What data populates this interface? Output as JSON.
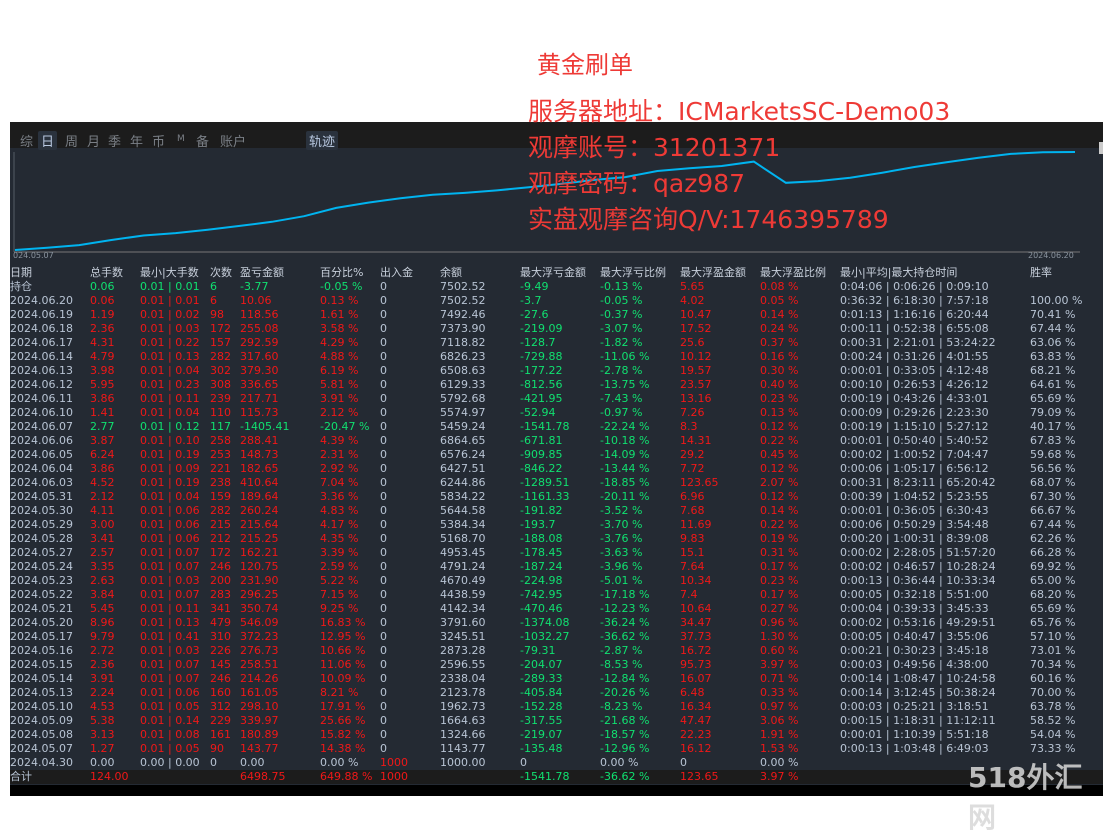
{
  "tabs": [
    "综",
    "日",
    "周",
    "月",
    "季",
    "年",
    "币",
    "M",
    "备",
    "账户"
  ],
  "active_tab": "日",
  "track_button": "轨迹",
  "chart": {
    "start_date": "024.05.07",
    "end_date": "2024.06.20",
    "line_color": "#00b4f0"
  },
  "overlay": {
    "title": "黄金刷单",
    "server": "服务器地址：ICMarketsSC-Demo03",
    "account": "观摩账号：31201371",
    "password": "观摩密码：qaz987",
    "contact": "实盘观摩咨询Q/V:1746395789"
  },
  "watermark": "518外汇网",
  "table": {
    "headers": [
      "日期",
      "总手数",
      "最小|大手数",
      "次数",
      "盈亏金额",
      "百分比%",
      "出入金",
      "余额",
      "最大浮亏金额",
      "最大浮亏比例",
      "最大浮盈金额",
      "最大浮盈比例",
      "最小|平均|最大持仓时间",
      "胜率"
    ],
    "holding": [
      "持仓",
      "0.06",
      "0.01 | 0.01",
      "6",
      "-3.77",
      "-0.05 %",
      "0",
      "7502.52",
      "-9.49",
      "-0.13 %",
      "5.65",
      "0.08 %",
      "0:04:06 | 0:06:26 | 0:09:10",
      ""
    ],
    "rows": [
      [
        "2024.06.20",
        "0.06",
        "0.01 | 0.01",
        "6",
        "10.06",
        "0.13 %",
        "0",
        "7502.52",
        "-3.7",
        "-0.05 %",
        "4.02",
        "0.05 %",
        "0:36:32 | 6:18:30 | 7:57:18",
        "100.00 %"
      ],
      [
        "2024.06.19",
        "1.19",
        "0.01 | 0.02",
        "98",
        "118.56",
        "1.61 %",
        "0",
        "7492.46",
        "-27.6",
        "-0.37 %",
        "10.47",
        "0.14 %",
        "0:01:13 | 1:16:16 | 6:20:44",
        "70.41 %"
      ],
      [
        "2024.06.18",
        "2.36",
        "0.01 | 0.03",
        "172",
        "255.08",
        "3.58 %",
        "0",
        "7373.90",
        "-219.09",
        "-3.07 %",
        "17.52",
        "0.24 %",
        "0:00:11 | 0:52:38 | 6:55:08",
        "67.44 %"
      ],
      [
        "2024.06.17",
        "4.31",
        "0.01 | 0.22",
        "157",
        "292.59",
        "4.29 %",
        "0",
        "7118.82",
        "-128.7",
        "-1.82 %",
        "25.6",
        "0.37 %",
        "0:00:31 | 2:21:01 | 53:24:22",
        "63.06 %"
      ],
      [
        "2024.06.14",
        "4.79",
        "0.01 | 0.13",
        "282",
        "317.60",
        "4.88 %",
        "0",
        "6826.23",
        "-729.88",
        "-11.06 %",
        "10.12",
        "0.16 %",
        "0:00:24 | 0:31:26 | 4:01:55",
        "63.83 %"
      ],
      [
        "2024.06.13",
        "3.98",
        "0.01 | 0.04",
        "302",
        "379.30",
        "6.19 %",
        "0",
        "6508.63",
        "-177.22",
        "-2.78 %",
        "19.57",
        "0.30 %",
        "0:00:01 | 0:33:05 | 4:12:48",
        "68.21 %"
      ],
      [
        "2024.06.12",
        "5.95",
        "0.01 | 0.23",
        "308",
        "336.65",
        "5.81 %",
        "0",
        "6129.33",
        "-812.56",
        "-13.75 %",
        "23.57",
        "0.40 %",
        "0:00:10 | 0:26:53 | 4:26:12",
        "64.61 %"
      ],
      [
        "2024.06.11",
        "3.86",
        "0.01 | 0.11",
        "239",
        "217.71",
        "3.91 %",
        "0",
        "5792.68",
        "-421.95",
        "-7.43 %",
        "13.16",
        "0.23 %",
        "0:00:19 | 0:43:26 | 4:33:01",
        "65.69 %"
      ],
      [
        "2024.06.10",
        "1.41",
        "0.01 | 0.04",
        "110",
        "115.73",
        "2.12 %",
        "0",
        "5574.97",
        "-52.94",
        "-0.97 %",
        "7.26",
        "0.13 %",
        "0:00:09 | 0:29:26 | 2:23:30",
        "79.09 %"
      ],
      [
        "2024.06.07",
        "2.77",
        "0.01 | 0.12",
        "117",
        "-1405.41",
        "-20.47 %",
        "0",
        "5459.24",
        "-1541.78",
        "-22.24 %",
        "8.3",
        "0.12 %",
        "0:00:19 | 1:15:10 | 5:27:12",
        "40.17 %"
      ],
      [
        "2024.06.06",
        "3.87",
        "0.01 | 0.10",
        "258",
        "288.41",
        "4.39 %",
        "0",
        "6864.65",
        "-671.81",
        "-10.18 %",
        "14.31",
        "0.22 %",
        "0:00:01 | 0:50:40 | 5:40:52",
        "67.83 %"
      ],
      [
        "2024.06.05",
        "6.24",
        "0.01 | 0.19",
        "253",
        "148.73",
        "2.31 %",
        "0",
        "6576.24",
        "-909.85",
        "-14.09 %",
        "29.2",
        "0.45 %",
        "0:00:02 | 1:00:52 | 7:04:47",
        "59.68 %"
      ],
      [
        "2024.06.04",
        "3.86",
        "0.01 | 0.09",
        "221",
        "182.65",
        "2.92 %",
        "0",
        "6427.51",
        "-846.22",
        "-13.44 %",
        "7.72",
        "0.12 %",
        "0:00:06 | 1:05:17 | 6:56:12",
        "56.56 %"
      ],
      [
        "2024.06.03",
        "4.52",
        "0.01 | 0.19",
        "238",
        "410.64",
        "7.04 %",
        "0",
        "6244.86",
        "-1289.51",
        "-18.85 %",
        "123.65",
        "2.07 %",
        "0:00:31 | 8:23:11 | 65:20:42",
        "68.07 %"
      ],
      [
        "2024.05.31",
        "2.12",
        "0.01 | 0.04",
        "159",
        "189.64",
        "3.36 %",
        "0",
        "5834.22",
        "-1161.33",
        "-20.11 %",
        "6.96",
        "0.12 %",
        "0:00:39 | 1:04:52 | 5:23:55",
        "67.30 %"
      ],
      [
        "2024.05.30",
        "4.11",
        "0.01 | 0.06",
        "282",
        "260.24",
        "4.83 %",
        "0",
        "5644.58",
        "-191.82",
        "-3.52 %",
        "7.68",
        "0.14 %",
        "0:00:01 | 0:36:05 | 6:30:43",
        "66.67 %"
      ],
      [
        "2024.05.29",
        "3.00",
        "0.01 | 0.06",
        "215",
        "215.64",
        "4.17 %",
        "0",
        "5384.34",
        "-193.7",
        "-3.70 %",
        "11.69",
        "0.22 %",
        "0:00:06 | 0:50:29 | 3:54:48",
        "67.44 %"
      ],
      [
        "2024.05.28",
        "3.41",
        "0.01 | 0.06",
        "212",
        "215.25",
        "4.35 %",
        "0",
        "5168.70",
        "-188.08",
        "-3.76 %",
        "9.83",
        "0.19 %",
        "0:00:20 | 1:00:31 | 8:39:08",
        "62.26 %"
      ],
      [
        "2024.05.27",
        "2.57",
        "0.01 | 0.07",
        "172",
        "162.21",
        "3.39 %",
        "0",
        "4953.45",
        "-178.45",
        "-3.63 %",
        "15.1",
        "0.31 %",
        "0:00:02 | 2:28:05 | 51:57:20",
        "66.28 %"
      ],
      [
        "2024.05.24",
        "3.35",
        "0.01 | 0.07",
        "246",
        "120.75",
        "2.59 %",
        "0",
        "4791.24",
        "-187.24",
        "-3.96 %",
        "7.64",
        "0.17 %",
        "0:00:02 | 0:46:57 | 10:28:24",
        "69.92 %"
      ],
      [
        "2024.05.23",
        "2.63",
        "0.01 | 0.03",
        "200",
        "231.90",
        "5.22 %",
        "0",
        "4670.49",
        "-224.98",
        "-5.01 %",
        "10.34",
        "0.23 %",
        "0:00:13 | 0:36:44 | 10:33:34",
        "65.00 %"
      ],
      [
        "2024.05.22",
        "3.84",
        "0.01 | 0.07",
        "283",
        "296.25",
        "7.15 %",
        "0",
        "4438.59",
        "-742.95",
        "-17.18 %",
        "7.4",
        "0.17 %",
        "0:00:05 | 0:32:18 | 5:51:00",
        "68.20 %"
      ],
      [
        "2024.05.21",
        "5.45",
        "0.01 | 0.11",
        "341",
        "350.74",
        "9.25 %",
        "0",
        "4142.34",
        "-470.46",
        "-12.23 %",
        "10.64",
        "0.27 %",
        "0:00:04 | 0:39:33 | 3:45:33",
        "65.69 %"
      ],
      [
        "2024.05.20",
        "8.96",
        "0.01 | 0.13",
        "479",
        "546.09",
        "16.83 %",
        "0",
        "3791.60",
        "-1374.08",
        "-36.24 %",
        "34.47",
        "0.96 %",
        "0:00:02 | 0:53:16 | 49:29:51",
        "65.76 %"
      ],
      [
        "2024.05.17",
        "9.79",
        "0.01 | 0.41",
        "310",
        "372.23",
        "12.95 %",
        "0",
        "3245.51",
        "-1032.27",
        "-36.62 %",
        "37.73",
        "1.30 %",
        "0:00:05 | 0:40:47 | 3:55:06",
        "57.10 %"
      ],
      [
        "2024.05.16",
        "2.72",
        "0.01 | 0.03",
        "226",
        "276.73",
        "10.66 %",
        "0",
        "2873.28",
        "-79.31",
        "-2.87 %",
        "16.72",
        "0.60 %",
        "0:00:21 | 0:30:23 | 3:45:18",
        "73.01 %"
      ],
      [
        "2024.05.15",
        "2.36",
        "0.01 | 0.07",
        "145",
        "258.51",
        "11.06 %",
        "0",
        "2596.55",
        "-204.07",
        "-8.53 %",
        "95.73",
        "3.97 %",
        "0:00:03 | 0:49:56 | 4:38:00",
        "70.34 %"
      ],
      [
        "2024.05.14",
        "3.91",
        "0.01 | 0.07",
        "246",
        "214.26",
        "10.09 %",
        "0",
        "2338.04",
        "-289.33",
        "-12.84 %",
        "16.07",
        "0.71 %",
        "0:00:14 | 1:08:47 | 10:24:58",
        "60.16 %"
      ],
      [
        "2024.05.13",
        "2.24",
        "0.01 | 0.06",
        "160",
        "161.05",
        "8.21 %",
        "0",
        "2123.78",
        "-405.84",
        "-20.26 %",
        "6.48",
        "0.33 %",
        "0:00:14 | 3:12:45 | 50:38:24",
        "70.00 %"
      ],
      [
        "2024.05.10",
        "4.53",
        "0.01 | 0.05",
        "312",
        "298.10",
        "17.91 %",
        "0",
        "1962.73",
        "-152.28",
        "-8.23 %",
        "16.34",
        "0.97 %",
        "0:00:03 | 0:25:21 | 3:18:51",
        "63.78 %"
      ],
      [
        "2024.05.09",
        "5.38",
        "0.01 | 0.14",
        "229",
        "339.97",
        "25.66 %",
        "0",
        "1664.63",
        "-317.55",
        "-21.68 %",
        "47.47",
        "3.06 %",
        "0:00:15 | 1:18:31 | 11:12:11",
        "58.52 %"
      ],
      [
        "2024.05.08",
        "3.13",
        "0.01 | 0.08",
        "161",
        "180.89",
        "15.82 %",
        "0",
        "1324.66",
        "-219.07",
        "-18.57 %",
        "22.23",
        "1.91 %",
        "0:00:01 | 1:10:39 | 5:51:18",
        "54.04 %"
      ],
      [
        "2024.05.07",
        "1.27",
        "0.01 | 0.05",
        "90",
        "143.77",
        "14.38 %",
        "0",
        "1143.77",
        "-135.48",
        "-12.96 %",
        "16.12",
        "1.53 %",
        "0:00:13 | 1:03:48 | 6:49:03",
        "73.33 %"
      ],
      [
        "2024.04.30",
        "0.00",
        "0.00 | 0.00",
        "0",
        "0.00",
        "0.00 %",
        "1000",
        "1000.00",
        "0",
        "0.00 %",
        "0",
        "0.00 %",
        "",
        ""
      ]
    ],
    "total": [
      "合计",
      "124.00",
      "",
      "",
      "6498.75",
      "649.88 %",
      "1000",
      "",
      "-1541.78",
      "-36.62 %",
      "123.65",
      "3.97 %",
      "",
      ""
    ]
  }
}
